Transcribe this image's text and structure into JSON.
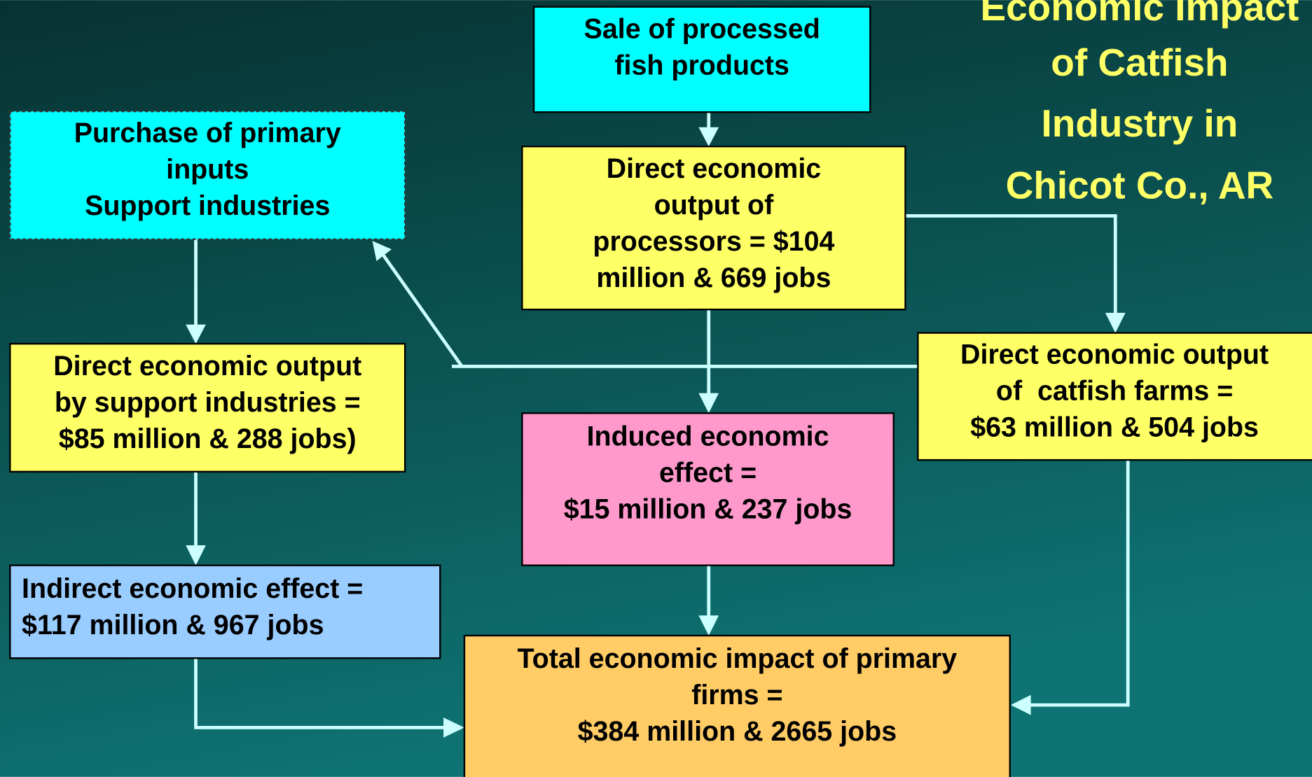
{
  "title": [
    "Economic Impact",
    "of Catfish",
    "Industry in",
    "Chicot Co., AR"
  ],
  "nodes": [
    {
      "lines": [
        "Sale of processed",
        "fish products"
      ]
    },
    {
      "lines": [
        "Purchase of primary",
        "inputs",
        "Support industries"
      ]
    },
    {
      "lines": [
        "Direct economic",
        "output of",
        "processors = $104",
        "million & 669 jobs"
      ]
    },
    {
      "lines": [
        "Direct economic output",
        "by support industries =",
        "$85 million & 288 jobs)"
      ]
    },
    {
      "lines": [
        "Direct economic output",
        "of  catfish farms =",
        "$63 million & 504 jobs"
      ]
    },
    {
      "lines": [
        "Induced economic",
        "effect =",
        "$15 million & 237 jobs"
      ]
    },
    {
      "lines": [
        "Indirect economic effect =",
        "$117 million & 967 jobs"
      ]
    },
    {
      "lines": [
        "Total economic impact of primary",
        "firms =",
        "$384 million & 2665 jobs"
      ]
    }
  ]
}
